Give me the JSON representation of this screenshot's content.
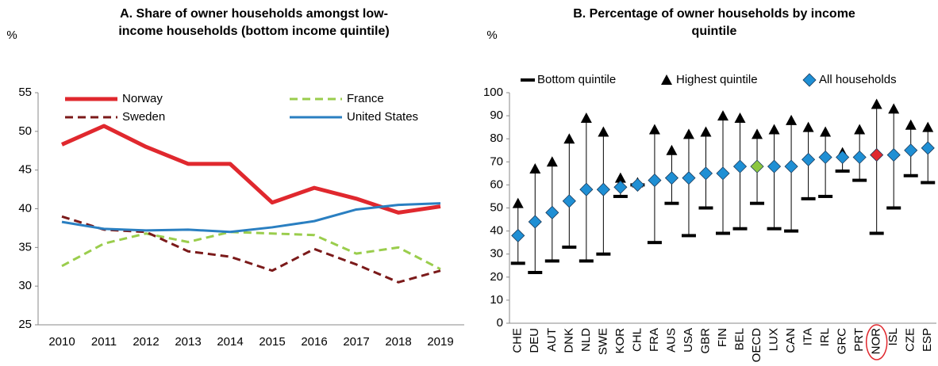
{
  "chart_data": [
    {
      "type": "line",
      "title": [
        "A. Share of owner households amongst low-",
        "income households (bottom income quintile)"
      ],
      "y_label": "%",
      "categories": [
        "2010",
        "2011",
        "2012",
        "2013",
        "2014",
        "2015",
        "2016",
        "2017",
        "2018",
        "2019"
      ],
      "series": [
        {
          "name": "Norway",
          "color": "#e0282e",
          "dash": false,
          "width": 5,
          "values": [
            48.3,
            50.7,
            48.0,
            45.8,
            45.8,
            40.8,
            42.7,
            41.3,
            39.5,
            40.3
          ]
        },
        {
          "name": "France",
          "color": "#9acd4c",
          "dash": true,
          "width": 3,
          "values": [
            32.6,
            35.5,
            36.8,
            35.7,
            37.0,
            36.8,
            36.6,
            34.2,
            35.0,
            32.2
          ]
        },
        {
          "name": "Sweden",
          "color": "#7b1a1a",
          "dash": true,
          "width": 3,
          "values": [
            39.0,
            37.3,
            37.0,
            34.5,
            33.8,
            32.0,
            34.8,
            32.8,
            30.5,
            32.0
          ]
        },
        {
          "name": "United States",
          "color": "#2a7fc1",
          "dash": false,
          "width": 3,
          "values": [
            38.3,
            37.4,
            37.2,
            37.3,
            37.0,
            37.6,
            38.4,
            39.9,
            40.5,
            40.7
          ]
        }
      ],
      "ylim": [
        25,
        55
      ],
      "yticks": [
        25,
        30,
        35,
        40,
        45,
        50,
        55
      ],
      "grid": false
    },
    {
      "type": "range",
      "title": [
        "B. Percentage of owner households by income",
        "quintile"
      ],
      "y_label": "%",
      "categories": [
        "CHE",
        "DEU",
        "AUT",
        "DNK",
        "NLD",
        "SWE",
        "KOR",
        "CHL",
        "FRA",
        "AUS",
        "USA",
        "GBR",
        "FIN",
        "BEL",
        "OECD",
        "LUX",
        "CAN",
        "ITA",
        "IRL",
        "GRC",
        "PRT",
        "NOR",
        "ISL",
        "CZE",
        "ESP"
      ],
      "series": [
        {
          "name": "Bottom quintile",
          "color": "#000000",
          "marker": "dash",
          "values": [
            26,
            22,
            27,
            33,
            27,
            30,
            55,
            60,
            35,
            52,
            38,
            50,
            39,
            41,
            52,
            41,
            40,
            54,
            55,
            66,
            62,
            39,
            50,
            64,
            61
          ]
        },
        {
          "name": "Highest quintile",
          "color": "#000000",
          "marker": "triangle",
          "values": [
            52,
            67,
            70,
            80,
            89,
            83,
            63,
            61,
            84,
            75,
            82,
            83,
            90,
            89,
            82,
            84,
            88,
            85,
            83,
            74,
            84,
            95,
            93,
            86,
            85
          ]
        },
        {
          "name": "All households",
          "color": "#1f8fd4",
          "marker": "diamond",
          "values": [
            38,
            44,
            48,
            53,
            58,
            58,
            59,
            60,
            62,
            63,
            63,
            65,
            65,
            68,
            68,
            68,
            68,
            71,
            72,
            72,
            72,
            73,
            73,
            75,
            76
          ]
        }
      ],
      "highlights": [
        {
          "category": "OECD",
          "color": "#8cc63f"
        },
        {
          "category": "NOR",
          "color": "#e0282e"
        }
      ],
      "circled": "NOR",
      "ylim": [
        0,
        100
      ],
      "yticks": [
        0,
        10,
        20,
        30,
        40,
        50,
        60,
        70,
        80,
        90,
        100
      ],
      "grid": false
    }
  ]
}
